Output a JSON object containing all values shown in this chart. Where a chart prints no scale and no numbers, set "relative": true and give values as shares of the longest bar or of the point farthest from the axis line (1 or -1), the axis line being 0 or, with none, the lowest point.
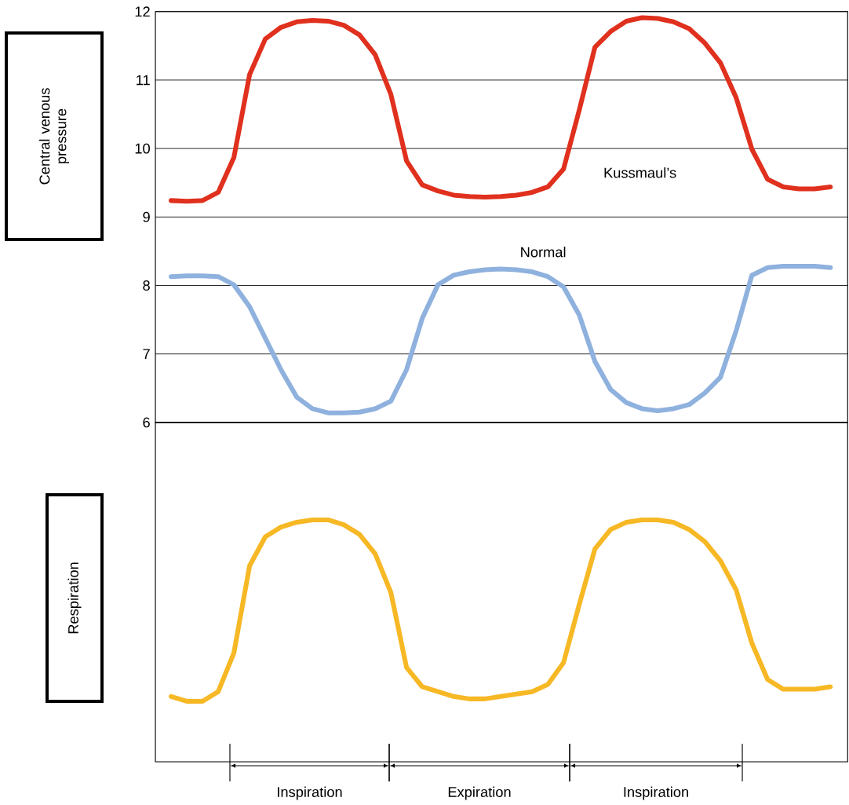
{
  "chart_data": [
    {
      "type": "line",
      "ylabel": "Central venous pressure",
      "tick_labels": "y",
      "grid": "y",
      "ylim": [
        6,
        12
      ],
      "yticks": [
        6,
        7,
        8,
        9,
        10,
        11,
        12
      ],
      "categories": [
        null,
        null,
        null,
        null,
        null,
        null,
        null,
        null,
        null,
        null,
        null,
        null,
        null,
        null,
        null,
        null,
        null,
        null,
        null,
        null,
        null,
        null,
        null,
        null,
        null,
        null,
        null,
        null,
        null,
        null,
        null,
        null,
        null,
        null,
        null,
        null,
        null,
        null,
        null,
        null,
        null,
        null,
        null
      ],
      "series": [
        {
          "name": "Kussmaul’s",
          "color": "#e0301e",
          "values": [
            9.24,
            9.23,
            9.24,
            9.36,
            9.87,
            11.08,
            11.6,
            11.77,
            11.85,
            11.87,
            11.86,
            11.8,
            11.66,
            11.37,
            10.79,
            9.82,
            9.47,
            9.38,
            9.32,
            9.3,
            9.29,
            9.3,
            9.32,
            9.36,
            9.44,
            9.7,
            10.56,
            11.48,
            11.71,
            11.86,
            11.91,
            11.9,
            11.85,
            11.75,
            11.54,
            11.25,
            10.74,
            9.99,
            9.55,
            9.44,
            9.41,
            9.41,
            9.44
          ]
        },
        {
          "name": "Normal",
          "color": "#8fb1de",
          "values": [
            8.13,
            8.14,
            8.14,
            8.13,
            8.01,
            7.69,
            7.23,
            6.77,
            6.37,
            6.2,
            6.14,
            6.14,
            6.15,
            6.2,
            6.31,
            6.77,
            7.52,
            8.01,
            8.15,
            8.2,
            8.23,
            8.24,
            8.23,
            8.2,
            8.13,
            7.98,
            7.57,
            6.89,
            6.48,
            6.29,
            6.2,
            6.17,
            6.2,
            6.26,
            6.43,
            6.66,
            7.34,
            8.15,
            8.26,
            8.28,
            8.28,
            8.28,
            8.26
          ]
        }
      ]
    },
    {
      "type": "line",
      "ylabel": "Respiration",
      "tick_labels": false,
      "relative": true,
      "categories": [
        null,
        null,
        null,
        null,
        null,
        null,
        null,
        null,
        null,
        null,
        null,
        null,
        null,
        null,
        null,
        null,
        null,
        null,
        null,
        null,
        null,
        null,
        null,
        null,
        null,
        null,
        null,
        null,
        null,
        null,
        null,
        null,
        null,
        null,
        null,
        null,
        null,
        null,
        null,
        null,
        null,
        null,
        null
      ],
      "series": [
        {
          "color": "#f7b825",
          "values": [
            0.27,
            0.25,
            0.25,
            0.29,
            0.45,
            0.81,
            0.93,
            0.97,
            0.99,
            1.0,
            1.0,
            0.98,
            0.94,
            0.86,
            0.7,
            0.39,
            0.31,
            0.29,
            0.27,
            0.26,
            0.26,
            0.27,
            0.28,
            0.29,
            0.32,
            0.41,
            0.65,
            0.88,
            0.96,
            0.99,
            1.0,
            1.0,
            0.99,
            0.96,
            0.91,
            0.83,
            0.71,
            0.49,
            0.34,
            0.3,
            0.3,
            0.3,
            0.31
          ]
        }
      ],
      "annotations": [
        "Inspiration",
        "Expiration",
        "Inspiration"
      ]
    }
  ]
}
